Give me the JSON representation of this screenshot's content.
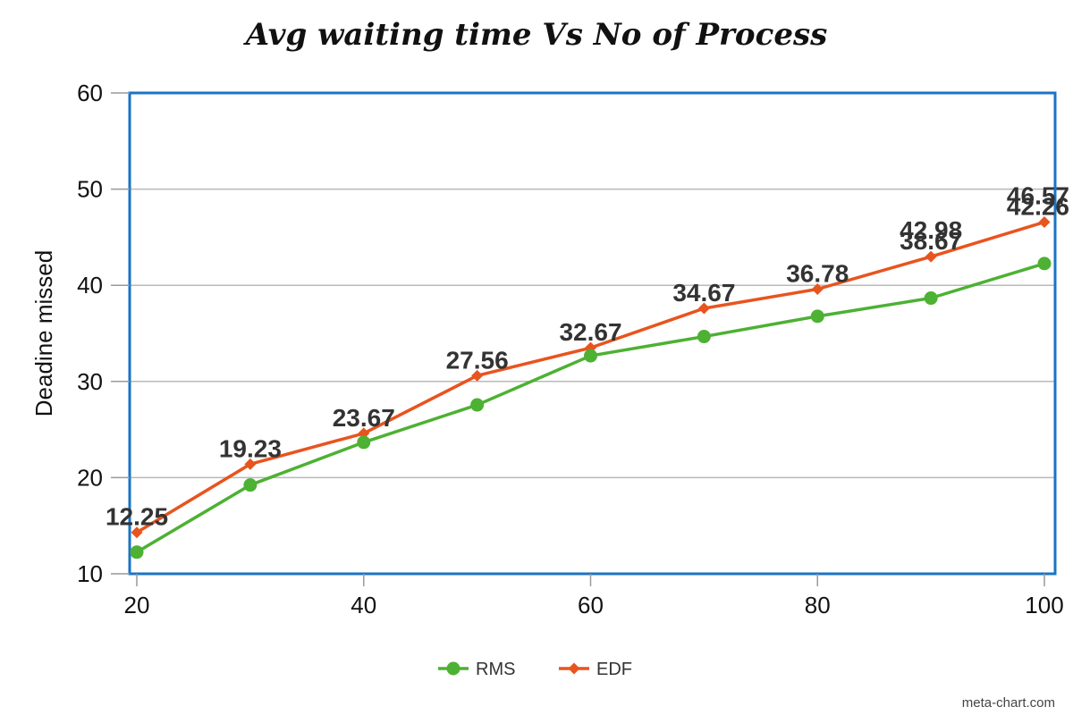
{
  "chart_data": {
    "type": "line",
    "title": "Avg waiting time Vs No of Process",
    "xlabel": "",
    "ylabel": "Deadine missed",
    "x": [
      20,
      30,
      40,
      50,
      60,
      70,
      80,
      90,
      100
    ],
    "xticks": [
      "20",
      "40",
      "60",
      "80",
      "100"
    ],
    "yticks": [
      "10",
      "20",
      "30",
      "40",
      "50",
      "60"
    ],
    "xlim": [
      20,
      100
    ],
    "ylim": [
      10,
      60
    ],
    "grid": true,
    "legend_position": "bottom",
    "series": [
      {
        "name": "RMS",
        "color": "#4db133",
        "marker": "circle",
        "values": [
          12.25,
          19.23,
          23.67,
          27.56,
          32.67,
          34.67,
          36.78,
          38.67,
          42.26
        ],
        "labels": [
          "12.25",
          "19.23",
          "23.67",
          "27.56",
          "32.67",
          "34.67",
          "36.78",
          "38.67",
          "42.26"
        ]
      },
      {
        "name": "EDF",
        "color": "#e8541e",
        "marker": "diamond",
        "values": [
          14.3,
          21.4,
          24.6,
          30.6,
          33.5,
          37.6,
          39.6,
          42.98,
          46.57
        ],
        "labels": [
          "",
          "",
          "",
          "",
          "",
          "",
          "",
          "42.98",
          "46.57"
        ]
      }
    ]
  },
  "credit": "meta-chart.com"
}
